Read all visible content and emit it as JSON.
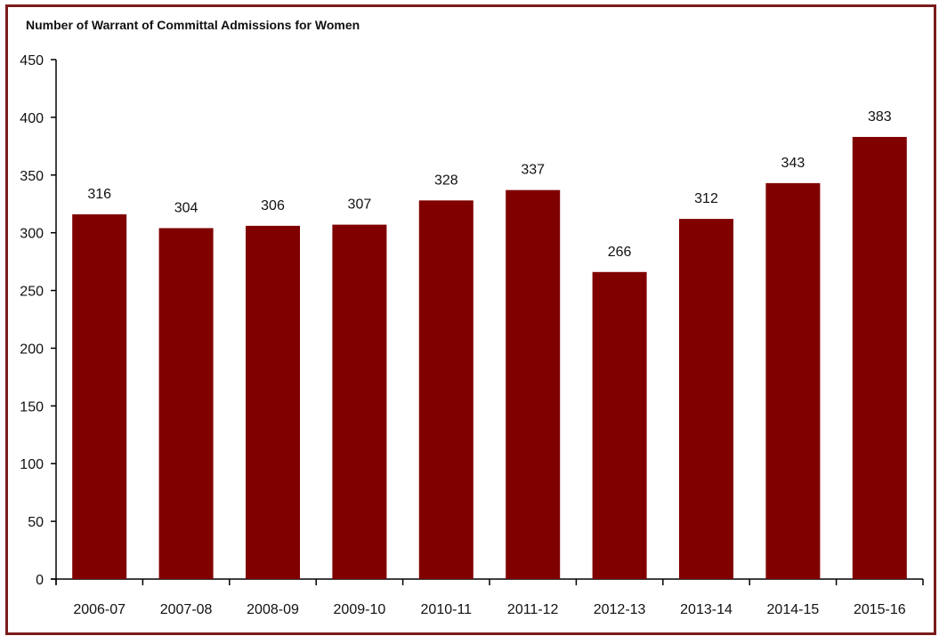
{
  "chart_data": {
    "type": "bar",
    "title": "Number of Warrant of Committal Admissions for Women",
    "xlabel": "",
    "ylabel": "",
    "categories": [
      "2006-07",
      "2007-08",
      "2008-09",
      "2009-10",
      "2010-11",
      "2011-12",
      "2012-13",
      "2013-14",
      "2014-15",
      "2015-16"
    ],
    "values": [
      316,
      304,
      306,
      307,
      328,
      337,
      266,
      312,
      343,
      383
    ],
    "ylim": [
      0,
      450
    ],
    "yticks": [
      0,
      50,
      100,
      150,
      200,
      250,
      300,
      350,
      400,
      450
    ],
    "grid": false,
    "data_labels": true,
    "bar_color": "#800000",
    "frame_color": "#7b1c1c"
  }
}
